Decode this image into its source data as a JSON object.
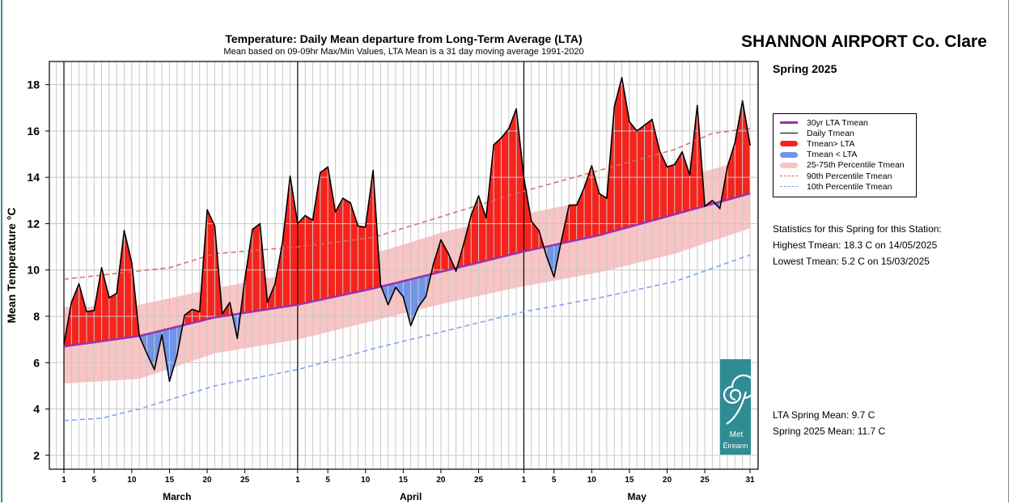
{
  "station": "SHANNON AIRPORT Co. Clare",
  "season": "Spring 2025",
  "statistics": {
    "heading": "Statistics for this Spring for this Station:",
    "highest": "Highest Tmean: 18.3 C on 14/05/2025",
    "lowest": "Lowest Tmean: 5.2 C on 15/03/2025",
    "lta_mean": "LTA Spring Mean: 9.7 C",
    "season_mean": "Spring 2025 Mean: 11.7 C"
  },
  "logo": {
    "text": "Met Éireann",
    "color": "#2e8c94"
  },
  "legend": [
    {
      "label": "30yr LTA Tmean",
      "color": "#9b30b0",
      "style": "line"
    },
    {
      "label": "Daily Tmean",
      "color": "#000000",
      "style": "thin"
    },
    {
      "label": "Tmean> LTA",
      "color": "#f5231c",
      "style": "thick"
    },
    {
      "label": "Tmean < LTA",
      "color": "#6f94e8",
      "style": "thick"
    },
    {
      "label": "25-75th Percentile Tmean",
      "color": "#f8c4c4",
      "style": "thick"
    },
    {
      "label": "90th Percentile Tmean",
      "color": "#d96a6a",
      "style": "dash"
    },
    {
      "label": "10th Percentile Tmean",
      "color": "#7aa0f0",
      "style": "dash"
    }
  ],
  "chart_data": {
    "type": "line",
    "title": "Temperature: Daily Mean departure from Long-Term Average (LTA)",
    "subtitle": "Mean based on 09-09hr Max/Min Values, LTA Mean is a 31 day moving average 1991-2020",
    "ylabel": "Mean Temperature °C",
    "ylim": [
      1.4,
      19
    ],
    "yticks": [
      2,
      4,
      6,
      8,
      10,
      12,
      14,
      16,
      18
    ],
    "months": [
      "March",
      "April",
      "May"
    ],
    "month_lengths": [
      31,
      30,
      31
    ],
    "xtick_days": [
      "1",
      "5",
      "10",
      "15",
      "20",
      "25"
    ],
    "last_tick": "31",
    "grid": true,
    "legend_position": "right, outside",
    "daily_tmean": [
      6.8,
      8.6,
      9.4,
      8.2,
      8.25,
      10.1,
      8.8,
      9.0,
      11.7,
      10.3,
      7.15,
      6.4,
      5.7,
      7.2,
      5.2,
      6.3,
      8.05,
      8.3,
      8.2,
      12.6,
      11.9,
      8.1,
      8.6,
      7.05,
      9.6,
      11.75,
      12.0,
      8.6,
      9.4,
      11.2,
      14.05,
      12.0,
      12.35,
      12.15,
      14.2,
      14.45,
      12.5,
      13.1,
      12.9,
      11.9,
      11.85,
      14.3,
      9.35,
      8.5,
      9.25,
      8.85,
      7.6,
      8.4,
      8.85,
      10.25,
      11.3,
      10.7,
      9.95,
      11.1,
      12.35,
      13.2,
      12.25,
      15.4,
      15.7,
      16.1,
      16.95,
      14.0,
      12.1,
      11.7,
      10.6,
      9.7,
      11.3,
      12.8,
      12.8,
      13.55,
      14.5,
      13.3,
      13.1,
      17.05,
      18.3,
      16.4,
      16.0,
      16.25,
      16.5,
      15.15,
      14.45,
      14.55,
      15.1,
      14.1,
      17.1,
      12.75,
      13.0,
      12.65,
      14.45,
      15.5,
      17.3,
      15.4
    ],
    "lta_tmean_knots": [
      [
        1,
        6.7
      ],
      [
        11,
        7.15
      ],
      [
        21,
        7.95
      ],
      [
        32,
        8.5
      ],
      [
        42,
        9.2
      ],
      [
        52,
        10.0
      ],
      [
        62,
        10.8
      ],
      [
        72,
        11.5
      ],
      [
        82,
        12.4
      ],
      [
        92,
        13.3
      ]
    ],
    "p90_knots": [
      [
        1,
        9.6
      ],
      [
        15,
        10.1
      ],
      [
        21,
        10.7
      ],
      [
        32,
        11.0
      ],
      [
        42,
        11.4
      ],
      [
        52,
        12.4
      ],
      [
        62,
        13.4
      ],
      [
        72,
        14.3
      ],
      [
        82,
        15.2
      ],
      [
        87,
        15.9
      ],
      [
        92,
        16.1
      ]
    ],
    "p75_knots": [
      [
        1,
        8.4
      ],
      [
        11,
        8.5
      ],
      [
        21,
        9.2
      ],
      [
        32,
        9.9
      ],
      [
        42,
        10.7
      ],
      [
        52,
        11.7
      ],
      [
        62,
        12.4
      ],
      [
        72,
        13.1
      ],
      [
        82,
        13.9
      ],
      [
        92,
        14.8
      ]
    ],
    "p25_knots": [
      [
        1,
        5.1
      ],
      [
        11,
        5.3
      ],
      [
        21,
        6.4
      ],
      [
        32,
        7.0
      ],
      [
        42,
        7.8
      ],
      [
        52,
        8.6
      ],
      [
        62,
        9.3
      ],
      [
        72,
        9.9
      ],
      [
        82,
        10.7
      ],
      [
        92,
        11.8
      ]
    ],
    "p10_knots": [
      [
        1,
        3.5
      ],
      [
        6,
        3.6
      ],
      [
        11,
        4.0
      ],
      [
        21,
        5.0
      ],
      [
        32,
        5.7
      ],
      [
        42,
        6.6
      ],
      [
        52,
        7.4
      ],
      [
        62,
        8.2
      ],
      [
        72,
        8.8
      ],
      [
        82,
        9.5
      ],
      [
        92,
        10.65
      ]
    ],
    "colors": {
      "above": "#f5231c",
      "below": "#6f94e8",
      "band": "#f8c4c4",
      "lta": "#9b30b0",
      "p90": "#d96a6a",
      "p10": "#7aa0f0",
      "grid": "#c8c8c8"
    }
  }
}
